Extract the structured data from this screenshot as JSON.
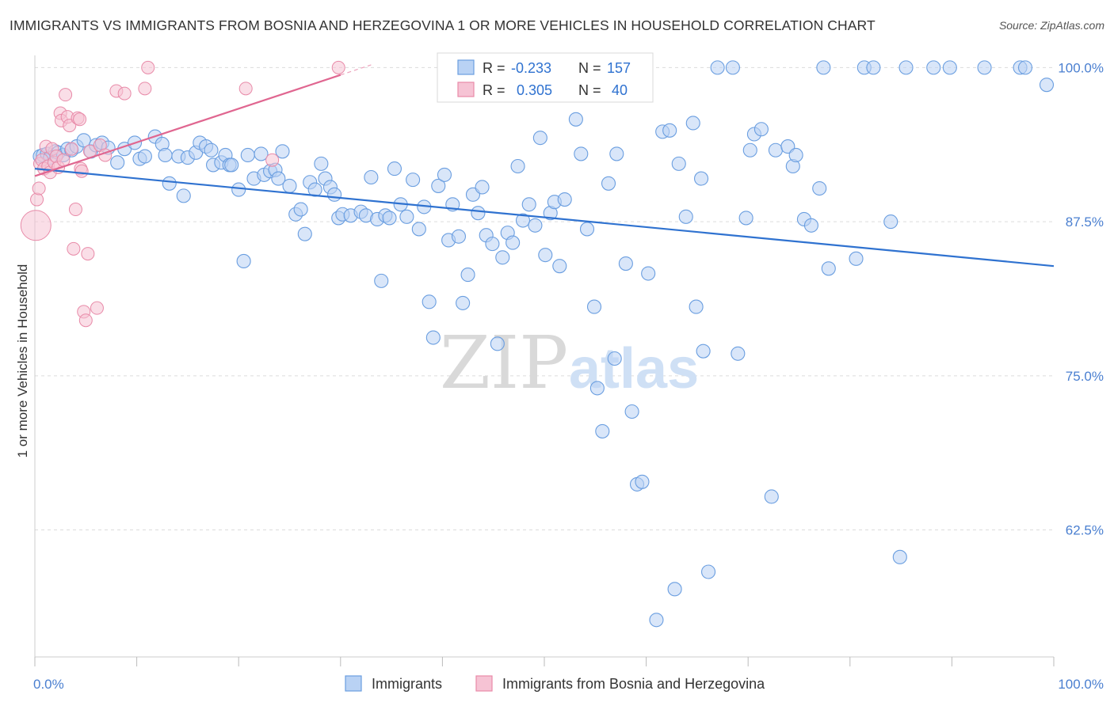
{
  "title": "IMMIGRANTS VS IMMIGRANTS FROM BOSNIA AND HERZEGOVINA 1 OR MORE VEHICLES IN HOUSEHOLD CORRELATION CHART",
  "source": "Source: ZipAtlas.com",
  "watermark": {
    "zip": "ZIP",
    "atlas": "atlas"
  },
  "colors": {
    "blue": "#6a9ee0",
    "blue_fill": "#b9d2f4",
    "blue_line": "#2f72d0",
    "pink": "#e88aa8",
    "pink_fill": "#f6c3d4",
    "pink_line": "#e06690",
    "tick_text": "#4a7fd0",
    "grid": "#dcdcdc"
  },
  "legend": {
    "rows": [
      {
        "r_label": "R =",
        "r_value": "-0.233",
        "n_label": "N =",
        "n_value": "157"
      },
      {
        "r_label": "R =",
        "r_value": "0.305",
        "n_label": "N =",
        "n_value": "40"
      }
    ]
  },
  "bottom_legend": [
    "Immigrants",
    "Immigrants from Bosnia and Herzegovina"
  ],
  "chart_data": {
    "type": "scatter",
    "xlabel": "",
    "ylabel": "1 or more Vehicles in Household",
    "x_tick_labels": [
      "0.0%",
      "100.0%"
    ],
    "y_tick_labels": [
      "100.0%",
      "87.5%",
      "75.0%",
      "62.5%"
    ],
    "y_ticks": [
      100,
      87.5,
      75,
      62.5
    ],
    "xlim": [
      0,
      100
    ],
    "ylim": [
      52.2,
      101.5
    ],
    "grid": true,
    "legend_position": "top-center",
    "series": [
      {
        "name": "Immigrants",
        "R": -0.233,
        "N": 157,
        "trend": {
          "x": [
            0,
            100
          ],
          "y": [
            91.8,
            83.9
          ]
        },
        "points": [
          [
            0.5,
            92.8
          ],
          [
            0.8,
            92.9
          ],
          [
            1.2,
            93.0
          ],
          [
            1.5,
            92.7
          ],
          [
            2.0,
            93.2
          ],
          [
            2.3,
            93.1
          ],
          [
            2.8,
            92.9
          ],
          [
            3.2,
            93.4
          ],
          [
            3.6,
            93.3
          ],
          [
            4.1,
            93.6
          ],
          [
            4.8,
            94.1
          ],
          [
            5.5,
            93.2
          ],
          [
            6.0,
            93.7
          ],
          [
            6.6,
            93.9
          ],
          [
            7.2,
            93.5
          ],
          [
            8.1,
            92.3
          ],
          [
            8.8,
            93.4
          ],
          [
            9.8,
            93.9
          ],
          [
            10.3,
            92.6
          ],
          [
            10.8,
            92.8
          ],
          [
            11.8,
            94.4
          ],
          [
            12.5,
            93.8
          ],
          [
            12.8,
            92.9
          ],
          [
            13.2,
            90.6
          ],
          [
            14.6,
            89.6
          ],
          [
            14.1,
            92.8
          ],
          [
            15.0,
            92.7
          ],
          [
            15.8,
            93.1
          ],
          [
            16.2,
            93.9
          ],
          [
            16.8,
            93.6
          ],
          [
            17.3,
            93.3
          ],
          [
            17.5,
            92.1
          ],
          [
            18.3,
            92.3
          ],
          [
            18.7,
            92.9
          ],
          [
            19.1,
            92.1
          ],
          [
            19.3,
            92.1
          ],
          [
            20.0,
            90.1
          ],
          [
            20.5,
            84.3
          ],
          [
            20.9,
            92.9
          ],
          [
            21.5,
            91.0
          ],
          [
            22.2,
            93.0
          ],
          [
            22.5,
            91.3
          ],
          [
            23.1,
            91.6
          ],
          [
            23.6,
            91.7
          ],
          [
            23.9,
            91.0
          ],
          [
            24.3,
            93.2
          ],
          [
            25.0,
            90.4
          ],
          [
            25.6,
            88.1
          ],
          [
            26.1,
            88.5
          ],
          [
            26.5,
            86.5
          ],
          [
            27.0,
            90.7
          ],
          [
            27.5,
            90.1
          ],
          [
            28.1,
            92.2
          ],
          [
            28.5,
            91.0
          ],
          [
            29.0,
            90.3
          ],
          [
            29.4,
            89.7
          ],
          [
            29.8,
            87.8
          ],
          [
            30.2,
            88.1
          ],
          [
            31.0,
            88.0
          ],
          [
            32.0,
            88.3
          ],
          [
            32.5,
            88.0
          ],
          [
            33.0,
            91.1
          ],
          [
            33.6,
            87.7
          ],
          [
            34.0,
            82.7
          ],
          [
            34.4,
            88.0
          ],
          [
            34.8,
            87.8
          ],
          [
            35.3,
            91.8
          ],
          [
            35.9,
            88.9
          ],
          [
            36.5,
            87.9
          ],
          [
            37.1,
            90.9
          ],
          [
            37.7,
            86.9
          ],
          [
            38.2,
            88.7
          ],
          [
            38.7,
            81.0
          ],
          [
            39.1,
            78.1
          ],
          [
            39.6,
            90.4
          ],
          [
            40.2,
            91.3
          ],
          [
            40.6,
            86.0
          ],
          [
            41.0,
            88.9
          ],
          [
            41.6,
            86.3
          ],
          [
            42.0,
            80.9
          ],
          [
            42.5,
            83.2
          ],
          [
            43.0,
            89.7
          ],
          [
            43.5,
            88.2
          ],
          [
            43.9,
            90.3
          ],
          [
            44.3,
            86.4
          ],
          [
            44.9,
            85.7
          ],
          [
            45.4,
            77.6
          ],
          [
            45.9,
            84.6
          ],
          [
            46.4,
            86.6
          ],
          [
            46.9,
            85.8
          ],
          [
            47.4,
            92.0
          ],
          [
            47.9,
            87.6
          ],
          [
            48.5,
            88.9
          ],
          [
            49.1,
            87.2
          ],
          [
            49.6,
            94.3
          ],
          [
            50.1,
            84.8
          ],
          [
            50.6,
            88.2
          ],
          [
            51.0,
            89.1
          ],
          [
            51.5,
            83.9
          ],
          [
            52.0,
            89.3
          ],
          [
            53.1,
            95.8
          ],
          [
            53.6,
            93.0
          ],
          [
            54.2,
            86.9
          ],
          [
            54.9,
            80.6
          ],
          [
            55.2,
            74.0
          ],
          [
            55.7,
            70.5
          ],
          [
            56.3,
            90.6
          ],
          [
            56.9,
            76.4
          ],
          [
            57.1,
            93.0
          ],
          [
            58.0,
            84.1
          ],
          [
            58.6,
            72.1
          ],
          [
            59.1,
            66.2
          ],
          [
            59.6,
            66.4
          ],
          [
            60.2,
            83.3
          ],
          [
            61.0,
            55.2
          ],
          [
            61.6,
            94.8
          ],
          [
            62.3,
            94.9
          ],
          [
            62.8,
            57.7
          ],
          [
            63.2,
            92.2
          ],
          [
            63.9,
            87.9
          ],
          [
            64.6,
            95.5
          ],
          [
            64.9,
            80.6
          ],
          [
            65.4,
            91.0
          ],
          [
            65.6,
            77.0
          ],
          [
            66.1,
            59.1
          ],
          [
            67.0,
            100.0
          ],
          [
            68.5,
            100.0
          ],
          [
            69.0,
            76.8
          ],
          [
            69.8,
            87.8
          ],
          [
            70.2,
            93.3
          ],
          [
            70.6,
            94.6
          ],
          [
            71.3,
            95.0
          ],
          [
            72.3,
            65.2
          ],
          [
            72.7,
            93.3
          ],
          [
            73.9,
            93.6
          ],
          [
            74.4,
            92.0
          ],
          [
            74.7,
            92.9
          ],
          [
            75.5,
            87.7
          ],
          [
            76.2,
            87.2
          ],
          [
            77.0,
            90.2
          ],
          [
            77.4,
            100.0
          ],
          [
            77.9,
            83.7
          ],
          [
            80.6,
            84.5
          ],
          [
            81.4,
            100.0
          ],
          [
            82.3,
            100.0
          ],
          [
            84.0,
            87.5
          ],
          [
            84.9,
            60.3
          ],
          [
            85.5,
            100.0
          ],
          [
            88.2,
            100.0
          ],
          [
            89.8,
            100.0
          ],
          [
            93.2,
            100.0
          ],
          [
            96.7,
            100.0
          ],
          [
            97.2,
            100.0
          ],
          [
            99.3,
            98.6
          ]
        ]
      },
      {
        "name": "Immigrants from Bosnia and Herzegovina",
        "R": 0.305,
        "N": 40,
        "trend": {
          "x": [
            0,
            30
          ],
          "y": [
            91.2,
            99.4
          ]
        },
        "points": [
          [
            0.1,
            87.2
          ],
          [
            0.2,
            89.3
          ],
          [
            0.4,
            90.2
          ],
          [
            0.5,
            92.2
          ],
          [
            0.7,
            92.5
          ],
          [
            0.9,
            91.8
          ],
          [
            1.1,
            93.6
          ],
          [
            1.3,
            92.0
          ],
          [
            1.5,
            91.5
          ],
          [
            1.7,
            93.4
          ],
          [
            1.9,
            92.3
          ],
          [
            2.1,
            92.8
          ],
          [
            2.3,
            91.9
          ],
          [
            2.5,
            96.3
          ],
          [
            2.6,
            95.7
          ],
          [
            2.8,
            92.5
          ],
          [
            3.0,
            97.8
          ],
          [
            3.2,
            96.0
          ],
          [
            3.4,
            95.3
          ],
          [
            3.6,
            93.4
          ],
          [
            3.8,
            85.3
          ],
          [
            4.0,
            88.5
          ],
          [
            4.2,
            95.9
          ],
          [
            4.4,
            95.8
          ],
          [
            4.5,
            91.8
          ],
          [
            4.6,
            91.6
          ],
          [
            4.8,
            80.2
          ],
          [
            5.0,
            79.5
          ],
          [
            5.2,
            84.9
          ],
          [
            5.4,
            93.2
          ],
          [
            6.1,
            80.5
          ],
          [
            6.4,
            93.7
          ],
          [
            6.9,
            92.9
          ],
          [
            8.0,
            98.1
          ],
          [
            8.8,
            97.9
          ],
          [
            10.8,
            98.3
          ],
          [
            11.1,
            100.0
          ],
          [
            20.7,
            98.3
          ],
          [
            23.3,
            92.5
          ],
          [
            29.8,
            100.0
          ]
        ]
      }
    ]
  }
}
